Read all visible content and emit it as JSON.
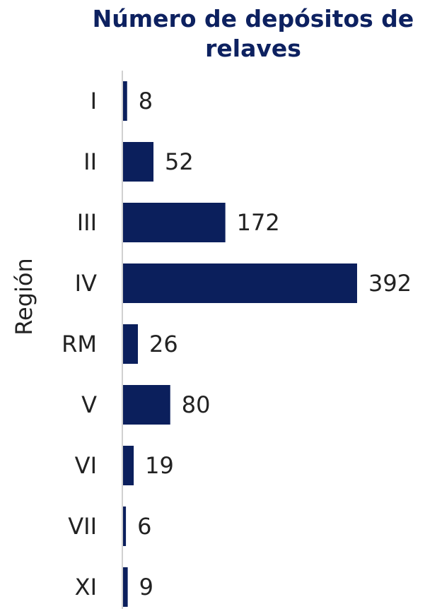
{
  "chart_data": {
    "type": "bar",
    "orientation": "horizontal",
    "title": "Número de depósitos de relaves",
    "y_label": "Región",
    "categories": [
      "I",
      "II",
      "III",
      "IV",
      "RM",
      "V",
      "VI",
      "VII",
      "XI"
    ],
    "values": [
      8,
      52,
      172,
      392,
      26,
      80,
      19,
      6,
      9
    ],
    "color": "#0b1f5c"
  }
}
